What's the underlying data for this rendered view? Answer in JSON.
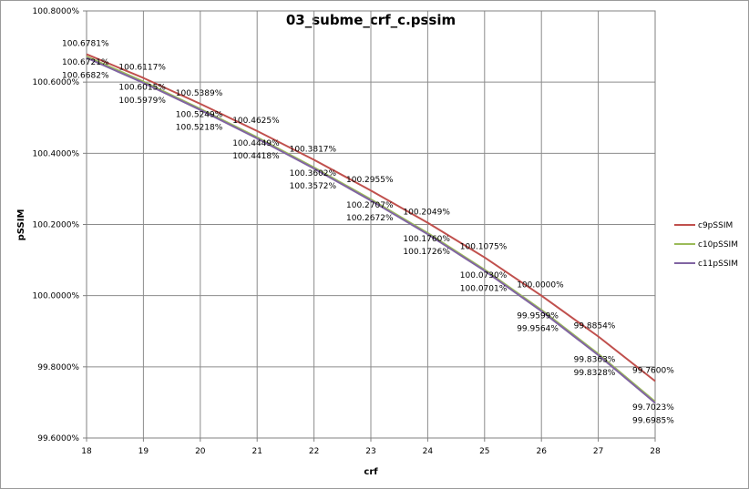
{
  "chart_data": {
    "type": "line",
    "title": "03_subme_crf_c.pssim",
    "xlabel": "crf",
    "ylabel": "pSSIM",
    "x": [
      18,
      19,
      20,
      21,
      22,
      23,
      24,
      25,
      26,
      27,
      28
    ],
    "x_tick_labels": [
      "18",
      "19",
      "20",
      "21",
      "22",
      "23",
      "24",
      "25",
      "26",
      "27",
      "28"
    ],
    "xlim": [
      18,
      28
    ],
    "ylim": [
      99.6,
      100.8
    ],
    "y_tick_labels": [
      "99.6000%",
      "99.8000%",
      "100.0000%",
      "100.2000%",
      "100.4000%",
      "100.6000%",
      "100.8000%"
    ],
    "y_ticks": [
      99.6,
      99.8,
      100.0,
      100.2,
      100.4,
      100.6,
      100.8
    ],
    "grid": true,
    "legend_position": "right",
    "series": [
      {
        "name": "c9pSSIM",
        "color": "#c0504d",
        "values": [
          100.6781,
          100.6117,
          100.5389,
          100.4625,
          100.3817,
          100.2955,
          100.2049,
          100.1075,
          100.0,
          99.8854,
          99.76
        ],
        "labels": [
          "100.6781%",
          "100.6117%",
          "100.5389%",
          "100.4625%",
          "100.3817%",
          "100.2955%",
          "100.2049%",
          "100.1075%",
          "100.0000%",
          "99.8854%",
          "99.7600%"
        ]
      },
      {
        "name": "c10pSSIM",
        "color": "#9bbb59",
        "values": [
          100.6721,
          100.6015,
          100.5249,
          100.4449,
          100.3602,
          100.2707,
          100.176,
          100.073,
          99.9599,
          99.8363,
          99.7023
        ],
        "labels": [
          "100.6721%",
          "100.6015%",
          "100.5249%",
          "100.4449%",
          "100.3602%",
          "100.2707%",
          "100.1760%",
          "100.0730%",
          "99.9599%",
          "99.8363%",
          "99.7023%"
        ]
      },
      {
        "name": "c11pSSIM",
        "color": "#8064a2",
        "values": [
          100.6682,
          100.5979,
          100.5218,
          100.4418,
          100.3572,
          100.2672,
          100.1726,
          100.0701,
          99.9564,
          99.8328,
          99.6985
        ],
        "labels": [
          "100.6682%",
          "100.5979%",
          "100.5218%",
          "100.4418%",
          "100.3572%",
          "100.2672%",
          "100.1726%",
          "100.0701%",
          "99.9564%",
          "99.8328%",
          "99.6985%"
        ]
      }
    ]
  }
}
